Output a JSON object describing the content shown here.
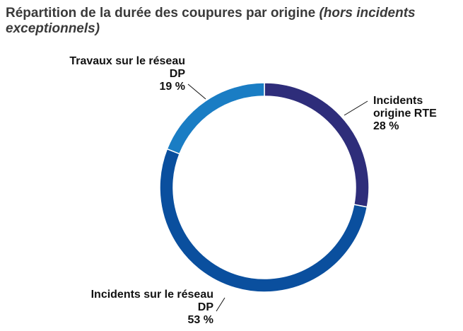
{
  "chart_data": {
    "type": "donut",
    "title": "Répartition de la durée des coupures par origine",
    "subtitle": "(hors incidents exceptionnels)",
    "categories": [
      "Incidents origine RTE",
      "Incidents sur le réseau DP",
      "Travaux sur le réseau DP"
    ],
    "values": [
      28,
      53,
      19
    ],
    "value_labels": [
      "28 %",
      "53 %",
      "19 %"
    ],
    "colors": [
      "#2e2d7a",
      "#0a4f9e",
      "#1a7dc4"
    ]
  }
}
